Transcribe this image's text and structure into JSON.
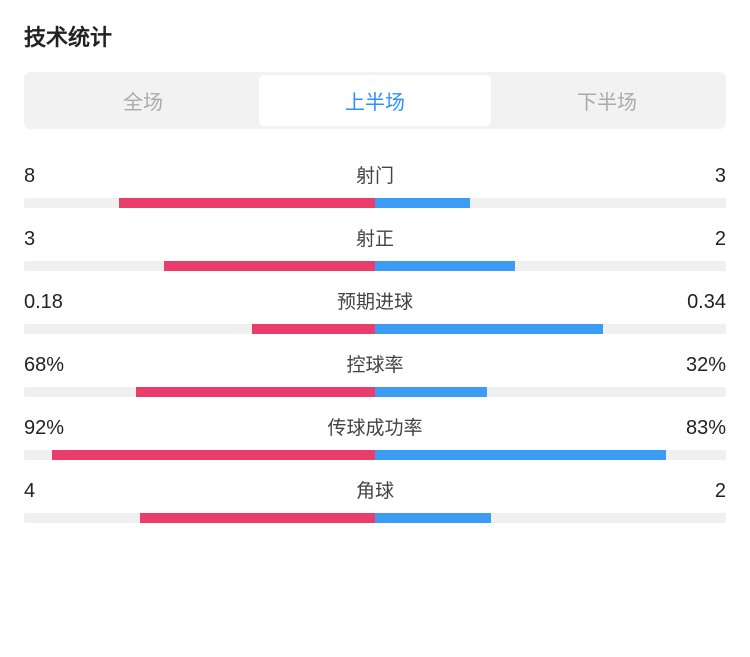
{
  "title": "技术统计",
  "tabs": [
    {
      "label": "全场",
      "active": false
    },
    {
      "label": "上半场",
      "active": true
    },
    {
      "label": "下半场",
      "active": false
    }
  ],
  "colors": {
    "left_bar": "#eb3d6b",
    "right_bar": "#3c9bf4",
    "track": "#f0f0f0",
    "tab_bg": "#f2f2f2",
    "tab_active_text": "#2e8fff",
    "tab_inactive_text": "#aaaaaa",
    "text_primary": "#222222",
    "text_secondary": "#444444"
  },
  "stats": [
    {
      "label": "射门",
      "left_value": "8",
      "right_value": "3",
      "left_pct": 73,
      "right_pct": 27
    },
    {
      "label": "射正",
      "left_value": "3",
      "right_value": "2",
      "left_pct": 60,
      "right_pct": 40
    },
    {
      "label": "预期进球",
      "left_value": "0.18",
      "right_value": "0.34",
      "left_pct": 35,
      "right_pct": 65
    },
    {
      "label": "控球率",
      "left_value": "68%",
      "right_value": "32%",
      "left_pct": 68,
      "right_pct": 32
    },
    {
      "label": "传球成功率",
      "left_value": "92%",
      "right_value": "83%",
      "left_pct": 92,
      "right_pct": 83
    },
    {
      "label": "角球",
      "left_value": "4",
      "right_value": "2",
      "left_pct": 67,
      "right_pct": 33
    }
  ]
}
